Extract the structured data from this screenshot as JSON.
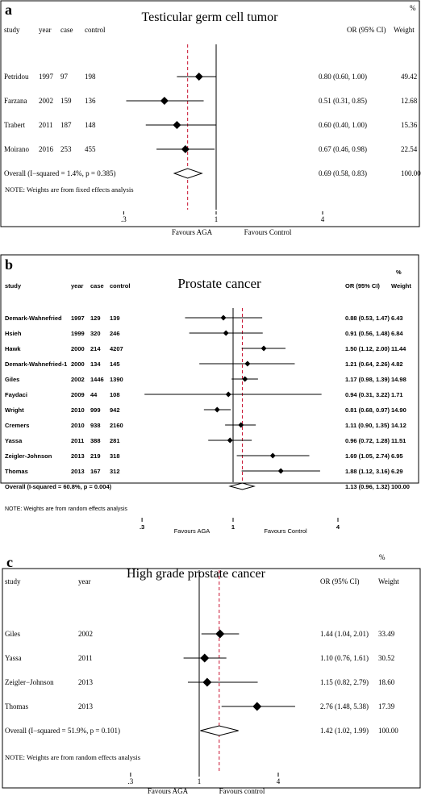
{
  "chart_data": [
    {
      "type": "forest",
      "panel_letter": "a",
      "title": "Testicular germ cell tumor",
      "columns": {
        "study": "study",
        "year": "year",
        "case": "case",
        "control": "control",
        "or": "OR (95% CI)",
        "weight_top": "%",
        "weight": "Weight"
      },
      "studies": [
        {
          "study": "Petridou",
          "year": "1997",
          "case": "97",
          "control": "198",
          "or": 0.8,
          "lo": 0.6,
          "hi": 1.0,
          "or_text": "0.80 (0.60, 1.00)",
          "weight": "49.42"
        },
        {
          "study": "Farzana",
          "year": "2002",
          "case": "159",
          "control": "136",
          "or": 0.51,
          "lo": 0.31,
          "hi": 0.85,
          "or_text": "0.51 (0.31, 0.85)",
          "weight": "12.68"
        },
        {
          "study": "Trabert",
          "year": "2011",
          "case": "187",
          "control": "148",
          "or": 0.6,
          "lo": 0.4,
          "hi": 1.0,
          "or_text": "0.60 (0.40, 1.00)",
          "weight": "15.36"
        },
        {
          "study": "Moirano",
          "year": "2016",
          "case": "253",
          "control": "455",
          "or": 0.67,
          "lo": 0.46,
          "hi": 0.98,
          "or_text": "0.67 (0.46, 0.98)",
          "weight": "22.54"
        }
      ],
      "overall": {
        "label": "Overall  (I−squared = 1.4%, p = 0.385)",
        "or": 0.69,
        "lo": 0.58,
        "hi": 0.83,
        "or_text": "0.69 (0.58, 0.83)",
        "weight": "100.00"
      },
      "note": "NOTE: Weights are from fixed effects analysis",
      "axis": {
        "scale": "log",
        "ticks": [
          {
            "v": 0.3,
            "label": ".3"
          },
          {
            "v": 1,
            "label": "1"
          },
          {
            "v": 4,
            "label": "4"
          }
        ],
        "left_label": "Favours AGA",
        "right_label": "Favours Control"
      }
    },
    {
      "type": "forest",
      "panel_letter": "b",
      "title": "Prostate cancer",
      "columns": {
        "study": "study",
        "year": "year",
        "case": "case",
        "control": "control",
        "or": "OR (95% CI)",
        "weight_top": "%",
        "weight": "Weight"
      },
      "studies": [
        {
          "study": "Demark-Wahnefried",
          "year": "1997",
          "case": "129",
          "control": "139",
          "or": 0.88,
          "lo": 0.53,
          "hi": 1.47,
          "or_text": "0.88 (0.53, 1.47)",
          "weight": "6.43"
        },
        {
          "study": "Hsieh",
          "year": "1999",
          "case": "320",
          "control": "246",
          "or": 0.91,
          "lo": 0.56,
          "hi": 1.48,
          "or_text": "0.91 (0.56, 1.48)",
          "weight": "6.84"
        },
        {
          "study": "Hawk",
          "year": "2000",
          "case": "214",
          "control": "4207",
          "or": 1.5,
          "lo": 1.12,
          "hi": 2.0,
          "or_text": "1.50 (1.12, 2.00)",
          "weight": "11.44"
        },
        {
          "study": "Demark-Wahnefried-1",
          "year": "2000",
          "case": "134",
          "control": "145",
          "or": 1.21,
          "lo": 0.64,
          "hi": 2.26,
          "or_text": "1.21 (0.64, 2.26)",
          "weight": "4.82"
        },
        {
          "study": "Giles",
          "year": "2002",
          "case": "1446",
          "control": "1390",
          "or": 1.17,
          "lo": 0.98,
          "hi": 1.39,
          "or_text": "1.17 (0.98, 1.39)",
          "weight": "14.98"
        },
        {
          "study": "Faydaci",
          "year": "2009",
          "case": "44",
          "control": "108",
          "or": 0.94,
          "lo": 0.31,
          "hi": 3.22,
          "or_text": "0.94 (0.31, 3.22)",
          "weight": "1.71"
        },
        {
          "study": "Wright",
          "year": "2010",
          "case": "999",
          "control": "942",
          "or": 0.81,
          "lo": 0.68,
          "hi": 0.97,
          "or_text": "0.81 (0.68, 0.97)",
          "weight": "14.90"
        },
        {
          "study": "Cremers",
          "year": "2010",
          "case": "938",
          "control": "2160",
          "or": 1.11,
          "lo": 0.9,
          "hi": 1.35,
          "or_text": "1.11 (0.90, 1.35)",
          "weight": "14.12"
        },
        {
          "study": "Yassa",
          "year": "2011",
          "case": "388",
          "control": "281",
          "or": 0.96,
          "lo": 0.72,
          "hi": 1.28,
          "or_text": "0.96 (0.72, 1.28)",
          "weight": "11.51"
        },
        {
          "study": "Zeigler-Johnson",
          "year": "2013",
          "case": "219",
          "control": "318",
          "or": 1.69,
          "lo": 1.05,
          "hi": 2.74,
          "or_text": "1.69 (1.05, 2.74)",
          "weight": "6.95"
        },
        {
          "study": "Thomas",
          "year": "2013",
          "case": "167",
          "control": "312",
          "or": 1.88,
          "lo": 1.12,
          "hi": 3.16,
          "or_text": "1.88 (1.12, 3.16)",
          "weight": "6.29"
        }
      ],
      "overall": {
        "label": "Overall  (I-squared = 60.8%, p = 0.004)",
        "or": 1.13,
        "lo": 0.96,
        "hi": 1.32,
        "or_text": "1.13 (0.96, 1.32)",
        "weight": "100.00"
      },
      "note": "NOTE: Weights are from random effects analysis",
      "axis": {
        "scale": "log",
        "ticks": [
          {
            "v": 0.3,
            "label": ".3"
          },
          {
            "v": 1,
            "label": "1"
          },
          {
            "v": 4,
            "label": "4"
          }
        ],
        "left_label": "Favours AGA",
        "right_label": "Favours Control"
      }
    },
    {
      "type": "forest",
      "panel_letter": "c",
      "title": "High grade prostate cancer",
      "columns": {
        "study": "study",
        "year": "year",
        "or": "OR (95% CI)",
        "weight_top": "%",
        "weight": "Weight"
      },
      "studies": [
        {
          "study": "Giles",
          "year": "2002",
          "or": 1.44,
          "lo": 1.04,
          "hi": 2.01,
          "or_text": "1.44 (1.04, 2.01)",
          "weight": "33.49"
        },
        {
          "study": "Yassa",
          "year": "2011",
          "or": 1.1,
          "lo": 0.76,
          "hi": 1.61,
          "or_text": "1.10 (0.76, 1.61)",
          "weight": "30.52"
        },
        {
          "study": "Zeigler−Johnson",
          "year": "2013",
          "or": 1.15,
          "lo": 0.82,
          "hi": 2.79,
          "or_text": "1.15 (0.82, 2.79)",
          "weight": "18.60"
        },
        {
          "study": "Thomas",
          "year": "2013",
          "or": 2.76,
          "lo": 1.48,
          "hi": 5.38,
          "or_text": "2.76 (1.48, 5.38)",
          "weight": "17.39"
        }
      ],
      "overall": {
        "label": "Overall  (I−squared = 51.9%, p = 0.101)",
        "or": 1.42,
        "lo": 1.02,
        "hi": 1.99,
        "or_text": "1.42 (1.02, 1.99)",
        "weight": "100.00"
      },
      "note": "NOTE: Weights are from random effects analysis",
      "axis": {
        "scale": "log",
        "ticks": [
          {
            "v": 0.3,
            "label": ".3"
          },
          {
            "v": 1,
            "label": "1"
          },
          {
            "v": 4,
            "label": "4"
          }
        ],
        "left_label": "Favours AGA",
        "right_label": "Favours control"
      }
    }
  ]
}
